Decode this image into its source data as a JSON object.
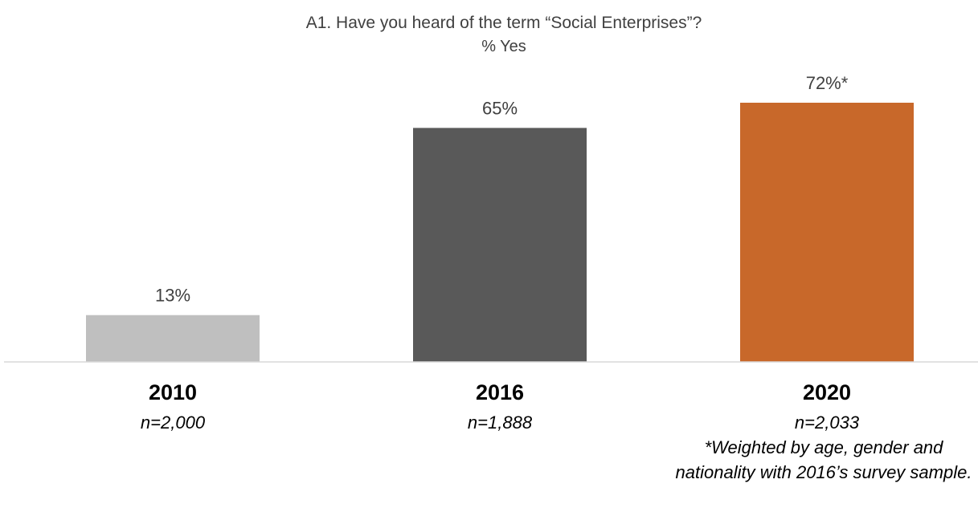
{
  "chart_data": {
    "type": "bar",
    "title": "A1. Have you heard of the term “Social Enterprises”?",
    "subtitle": "% Yes",
    "categories": [
      "2010",
      "2016",
      "2020"
    ],
    "sample_sizes": [
      "n=2,000",
      "n=1,888",
      "n=2,033"
    ],
    "values": [
      13,
      65,
      72
    ],
    "value_labels": [
      "13%",
      "65%",
      "72%*"
    ],
    "colors": [
      "#bfbfbf",
      "#595959",
      "#c8682a"
    ],
    "ylim": [
      0,
      100
    ],
    "grid": false,
    "legend": "none",
    "footnote": "*Weighted by age, gender and nationality with 2016’s survey sample."
  }
}
